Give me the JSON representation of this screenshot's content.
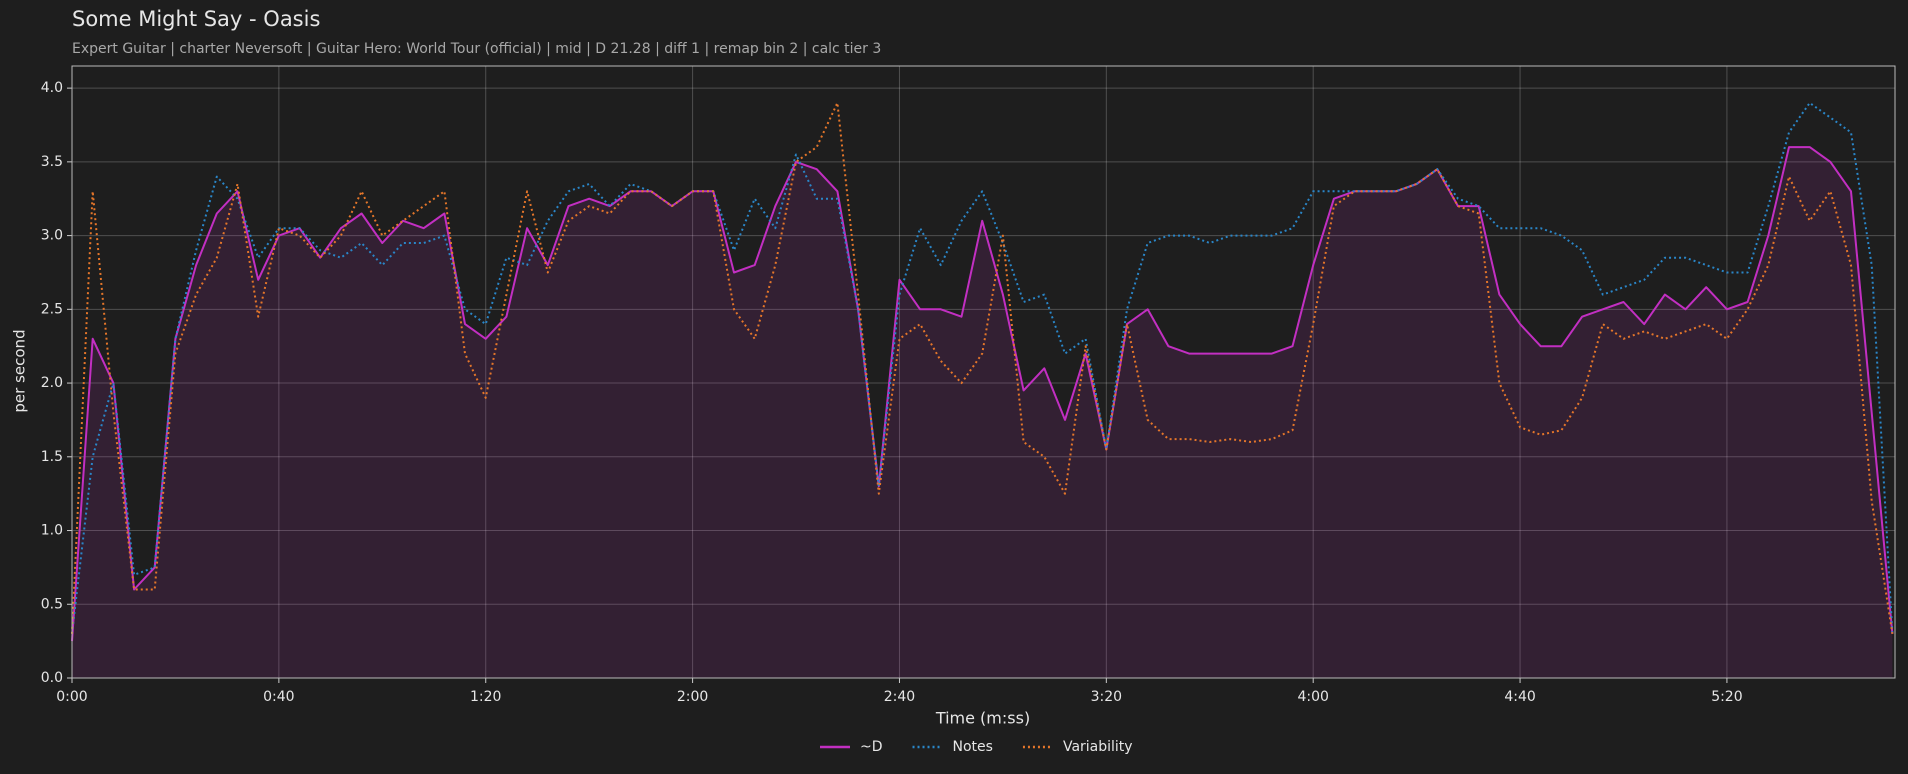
{
  "chart_data": {
    "type": "line",
    "title": "Some Might Say - Oasis",
    "subtitle": "Expert Guitar  |  charter Neversoft  |  Guitar Hero: World Tour (official)  |  mid  |  D 21.28  |  diff 1  |  remap bin 2  |  calc tier 3",
    "xlabel": "Time (m:ss)",
    "ylabel": "per second",
    "x": [
      0,
      4,
      8,
      12,
      16,
      20,
      24,
      28,
      32,
      36,
      40,
      44,
      48,
      52,
      56,
      60,
      64,
      68,
      72,
      76,
      80,
      84,
      88,
      92,
      96,
      100,
      104,
      108,
      112,
      116,
      120,
      124,
      128,
      132,
      136,
      140,
      144,
      148,
      152,
      156,
      160,
      164,
      168,
      172,
      176,
      180,
      184,
      188,
      192,
      196,
      200,
      204,
      208,
      212,
      216,
      220,
      224,
      228,
      232,
      236,
      240,
      244,
      248,
      252,
      256,
      260,
      264,
      268,
      272,
      276,
      280,
      284,
      288,
      292,
      296,
      300,
      304,
      308,
      312,
      316,
      320,
      324,
      328,
      332,
      336,
      340,
      344,
      348,
      352
    ],
    "series": [
      {
        "name": "~D",
        "color": "#c22fc2",
        "dash": "solid",
        "fill": true,
        "values": [
          0.25,
          2.3,
          2.0,
          0.6,
          0.75,
          2.3,
          2.8,
          3.15,
          3.3,
          2.7,
          3.0,
          3.05,
          2.85,
          3.05,
          3.15,
          2.95,
          3.1,
          3.05,
          3.15,
          2.4,
          2.3,
          2.45,
          3.05,
          2.8,
          3.2,
          3.25,
          3.2,
          3.3,
          3.3,
          3.2,
          3.3,
          3.3,
          2.75,
          2.8,
          3.2,
          3.5,
          3.45,
          3.3,
          2.5,
          1.3,
          2.7,
          2.5,
          2.5,
          2.45,
          3.1,
          2.6,
          1.95,
          2.1,
          1.75,
          2.2,
          1.55,
          2.4,
          2.5,
          2.25,
          2.2,
          2.2,
          2.2,
          2.2,
          2.2,
          2.25,
          2.8,
          3.25,
          3.3,
          3.3,
          3.3,
          3.35,
          3.45,
          3.2,
          3.2,
          2.6,
          2.4,
          2.25,
          2.25,
          2.45,
          2.5,
          2.55,
          2.4,
          2.6,
          2.5,
          2.65,
          2.5,
          2.55,
          3.0,
          3.6,
          3.6,
          3.5,
          3.3,
          1.8,
          0.3
        ]
      },
      {
        "name": "Notes",
        "color": "#2a86c8",
        "dash": "dotted",
        "fill": false,
        "values": [
          0.3,
          1.5,
          2.0,
          0.7,
          0.75,
          2.3,
          2.9,
          3.4,
          3.25,
          2.85,
          3.05,
          3.05,
          2.9,
          2.85,
          2.95,
          2.8,
          2.95,
          2.95,
          3.0,
          2.5,
          2.4,
          2.85,
          2.8,
          3.1,
          3.3,
          3.35,
          3.2,
          3.35,
          3.3,
          3.2,
          3.3,
          3.3,
          2.9,
          3.25,
          3.05,
          3.55,
          3.25,
          3.25,
          2.5,
          1.3,
          2.6,
          3.05,
          2.8,
          3.1,
          3.3,
          2.95,
          2.55,
          2.6,
          2.2,
          2.3,
          1.55,
          2.5,
          2.95,
          3.0,
          3.0,
          2.95,
          3.0,
          3.0,
          3.0,
          3.05,
          3.3,
          3.3,
          3.3,
          3.3,
          3.3,
          3.35,
          3.45,
          3.25,
          3.2,
          3.05,
          3.05,
          3.05,
          3.0,
          2.9,
          2.6,
          2.65,
          2.7,
          2.85,
          2.85,
          2.8,
          2.75,
          2.75,
          3.2,
          3.7,
          3.9,
          3.8,
          3.7,
          2.8,
          0.3
        ]
      },
      {
        "name": "Variability",
        "color": "#e5762a",
        "dash": "dotted",
        "fill": false,
        "values": [
          0.3,
          3.3,
          1.8,
          0.6,
          0.6,
          2.2,
          2.6,
          2.85,
          3.35,
          2.45,
          3.05,
          3.0,
          2.85,
          3.0,
          3.3,
          3.0,
          3.1,
          3.2,
          3.3,
          2.2,
          1.9,
          2.6,
          3.3,
          2.75,
          3.1,
          3.2,
          3.15,
          3.3,
          3.3,
          3.2,
          3.3,
          3.3,
          2.5,
          2.3,
          2.8,
          3.5,
          3.6,
          3.9,
          2.6,
          1.25,
          2.3,
          2.4,
          2.15,
          2.0,
          2.2,
          3.0,
          1.6,
          1.5,
          1.25,
          2.25,
          1.55,
          2.4,
          1.75,
          1.62,
          1.62,
          1.6,
          1.62,
          1.6,
          1.62,
          1.68,
          2.4,
          3.2,
          3.3,
          3.3,
          3.3,
          3.35,
          3.45,
          3.2,
          3.15,
          2.0,
          1.7,
          1.65,
          1.68,
          1.9,
          2.4,
          2.3,
          2.35,
          2.3,
          2.35,
          2.4,
          2.3,
          2.5,
          2.8,
          3.4,
          3.1,
          3.3,
          2.8,
          1.2,
          0.3
        ]
      }
    ],
    "xlim": [
      0,
      352.5
    ],
    "ylim": [
      0,
      4.15
    ],
    "xticks": [
      {
        "value": 0,
        "label": "0:00"
      },
      {
        "value": 40,
        "label": "0:40"
      },
      {
        "value": 80,
        "label": "1:20"
      },
      {
        "value": 120,
        "label": "2:00"
      },
      {
        "value": 160,
        "label": "2:40"
      },
      {
        "value": 200,
        "label": "3:20"
      },
      {
        "value": 240,
        "label": "4:00"
      },
      {
        "value": 280,
        "label": "4:40"
      },
      {
        "value": 320,
        "label": "5:20"
      }
    ],
    "yticks": [
      {
        "value": 0,
        "label": "0.0"
      },
      0.5,
      {
        "value": 1,
        "label": "1.0"
      },
      1.5,
      {
        "value": 2,
        "label": "2.0"
      },
      2.5,
      {
        "value": 3,
        "label": "3.0"
      },
      3.5,
      {
        "value": 4,
        "label": "4.0"
      }
    ],
    "grid": true,
    "legend": "bottom"
  }
}
